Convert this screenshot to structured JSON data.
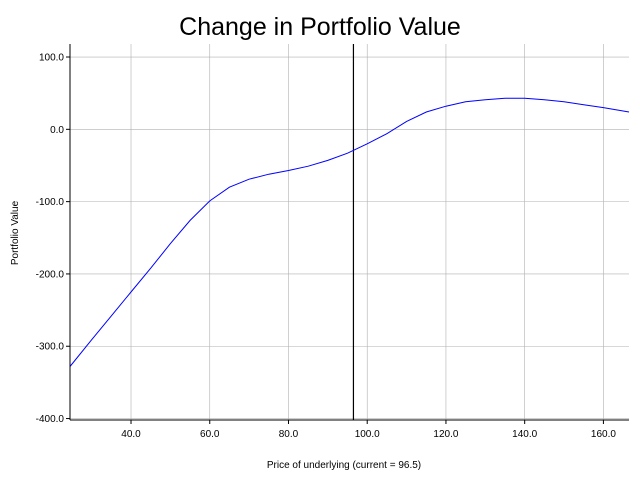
{
  "chart_data": {
    "type": "line",
    "title": "Change in Portfolio Value",
    "xlabel": "Price of underlying (current = 96.5)",
    "ylabel": "Portfolio Value",
    "xlim": [
      24.5,
      166.5
    ],
    "ylim": [
      -402,
      118
    ],
    "xticks": [
      40,
      60,
      80,
      100,
      120,
      140,
      160
    ],
    "xtick_labels": [
      "40.0",
      "60.0",
      "80.0",
      "100.0",
      "120.0",
      "140.0",
      "160.0"
    ],
    "yticks": [
      100,
      0,
      -100,
      -200,
      -300,
      -400
    ],
    "ytick_labels": [
      "100.0",
      "0.0",
      "-100.0",
      "-200.0",
      "-300.0",
      "-400.0"
    ],
    "grid": true,
    "vline": {
      "x": 96.5,
      "color": "#000000"
    },
    "series": [
      {
        "color": "#0000ff",
        "x": [
          24.5,
          30,
          35,
          40,
          45,
          50,
          55,
          60,
          65,
          70,
          75,
          80,
          85,
          90,
          95,
          100,
          105,
          110,
          115,
          120,
          125,
          130,
          135,
          140,
          145,
          150,
          155,
          160,
          166.5
        ],
        "y": [
          -328,
          -291,
          -258,
          -225,
          -192,
          -158,
          -126,
          -99,
          -80,
          -69,
          -62,
          -57,
          -51,
          -43,
          -33,
          -20,
          -6,
          11,
          24,
          32,
          38,
          41,
          43,
          43,
          41,
          38,
          34,
          30,
          24
        ]
      }
    ]
  }
}
